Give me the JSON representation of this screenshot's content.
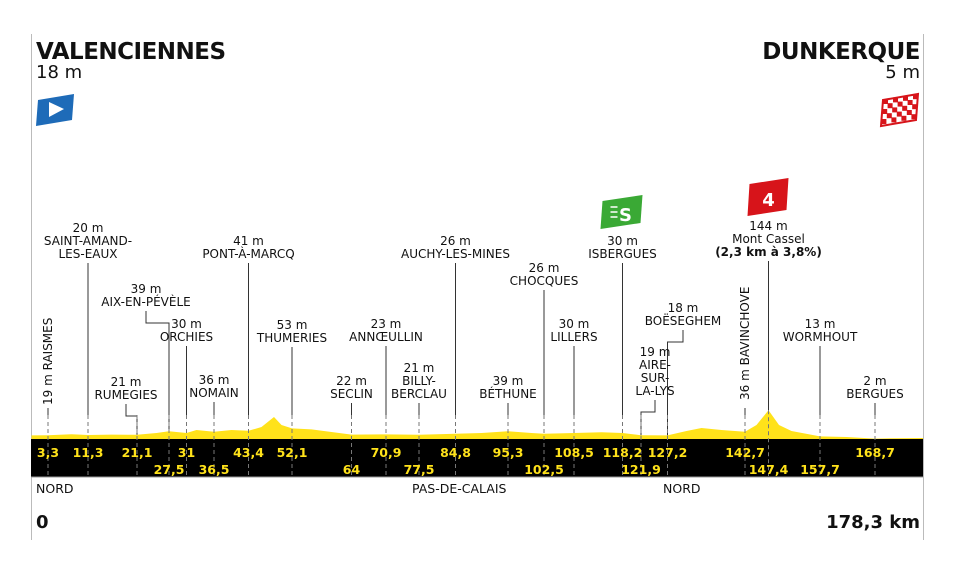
{
  "start": {
    "city": "VALENCIENNES",
    "altitude": "18 m",
    "icon": "start-flag-icon",
    "color": "#1e6bb8"
  },
  "finish": {
    "city": "DUNKERQUE",
    "altitude": "5 m",
    "icon": "finish-checkered-flag-icon",
    "color": "#d7141a"
  },
  "distance": {
    "start": "0",
    "end": "178,3 km"
  },
  "regions": [
    {
      "name": "NORD"
    },
    {
      "name": "PAS-DE-CALAIS"
    },
    {
      "name": "NORD"
    }
  ],
  "sprint": {
    "icon": "intermediate-sprint-icon",
    "label": "S",
    "color": "#3aa935"
  },
  "climb": {
    "icon": "climb-category-icon",
    "label": "4",
    "color": "#d7141a"
  },
  "colors": {
    "profile": "#ffe21a",
    "bar": "#000000"
  },
  "waypoints": [
    {
      "km": "3,3",
      "alt": "19 m",
      "name": [
        "RAISMES"
      ]
    },
    {
      "km": "11,3",
      "alt": "20 m",
      "name": [
        "SAINT-AMAND-",
        "LES-EAUX"
      ]
    },
    {
      "km": "21,1",
      "alt": "21 m",
      "name": [
        "RUMEGIES"
      ]
    },
    {
      "km": "27,5",
      "alt": "39 m",
      "name": [
        "AIX-EN-PÉVÈLE"
      ]
    },
    {
      "km": "31",
      "alt": "30 m",
      "name": [
        "ORCHIES"
      ]
    },
    {
      "km": "36,5",
      "alt": "36 m",
      "name": [
        "NOMAIN"
      ]
    },
    {
      "km": "43,4",
      "alt": "41 m",
      "name": [
        "PONT-À-MARCQ"
      ]
    },
    {
      "km": "52,1",
      "alt": "53 m",
      "name": [
        "THUMERIES"
      ]
    },
    {
      "km": "64",
      "alt": "22 m",
      "name": [
        "SECLIN"
      ]
    },
    {
      "km": "70,9",
      "alt": "23 m",
      "name": [
        "ANNŒULLIN"
      ]
    },
    {
      "km": "77,5",
      "alt": "21 m",
      "name": [
        "BILLY-",
        "BERCLAU"
      ]
    },
    {
      "km": "84,8",
      "alt": "26 m",
      "name": [
        "AUCHY-LES-MINES"
      ]
    },
    {
      "km": "95,3",
      "alt": "39 m",
      "name": [
        "BÉTHUNE"
      ]
    },
    {
      "km": "102,5",
      "alt": "26 m",
      "name": [
        "CHOCQUES"
      ]
    },
    {
      "km": "108,5",
      "alt": "30 m",
      "name": [
        "LILLERS"
      ]
    },
    {
      "km": "118,2",
      "alt": "30 m",
      "name": [
        "ISBERGUES"
      ]
    },
    {
      "km": "121,9",
      "alt": "19 m",
      "name": [
        "AIRE-",
        "SUR-",
        "LA-LYS"
      ]
    },
    {
      "km": "127,2",
      "alt": "18 m",
      "name": [
        "BOËSEGHEM"
      ]
    },
    {
      "km": "142,7",
      "alt": "36 m",
      "name": [
        "BAVINCHOVE"
      ]
    },
    {
      "km": "147,4",
      "alt": "144 m",
      "name": [
        "Mont Cassel"
      ],
      "detail": "(2,3 km à 3,8%)"
    },
    {
      "km": "157,7",
      "alt": "13 m",
      "name": [
        "WORMHOUT"
      ]
    },
    {
      "km": "168,7",
      "alt": "2 m",
      "name": [
        "BERGUES"
      ]
    }
  ],
  "chart_data": {
    "type": "area",
    "xlabel": "",
    "ylabel": "",
    "xlim": [
      0,
      178.3
    ],
    "profile": [
      [
        0,
        18
      ],
      [
        3.3,
        19
      ],
      [
        8,
        24
      ],
      [
        11.3,
        20
      ],
      [
        16,
        22
      ],
      [
        21.1,
        21
      ],
      [
        25,
        30
      ],
      [
        27.5,
        39
      ],
      [
        31,
        30
      ],
      [
        33,
        45
      ],
      [
        36.5,
        36
      ],
      [
        40,
        45
      ],
      [
        43.4,
        41
      ],
      [
        46,
        60
      ],
      [
        48.5,
        110
      ],
      [
        50,
        70
      ],
      [
        52.1,
        53
      ],
      [
        56,
        48
      ],
      [
        60,
        35
      ],
      [
        64,
        22
      ],
      [
        70.9,
        23
      ],
      [
        77.5,
        21
      ],
      [
        84.8,
        26
      ],
      [
        90,
        30
      ],
      [
        95.3,
        39
      ],
      [
        100,
        30
      ],
      [
        102.5,
        26
      ],
      [
        108.5,
        30
      ],
      [
        114,
        34
      ],
      [
        118.2,
        30
      ],
      [
        121.9,
        19
      ],
      [
        127.2,
        18
      ],
      [
        131,
        40
      ],
      [
        134,
        55
      ],
      [
        138,
        45
      ],
      [
        142.7,
        36
      ],
      [
        145,
        70
      ],
      [
        147.4,
        144
      ],
      [
        149.5,
        70
      ],
      [
        152,
        40
      ],
      [
        157.7,
        13
      ],
      [
        163,
        10
      ],
      [
        168.7,
        2
      ],
      [
        172,
        4
      ],
      [
        178.3,
        5
      ]
    ]
  }
}
